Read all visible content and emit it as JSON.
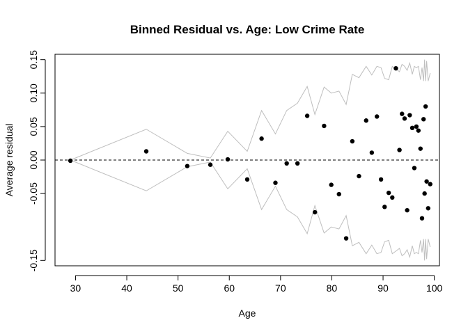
{
  "chart_data": {
    "type": "scatter",
    "title": "Binned Residual vs. Age: Low Crime Rate",
    "xlabel": "Age",
    "ylabel": "Average residual",
    "xlim": [
      26,
      101
    ],
    "ylim": [
      -0.158,
      0.158
    ],
    "x_ticks": [
      30,
      40,
      50,
      60,
      70,
      80,
      90,
      100
    ],
    "y_ticks": [
      -0.15,
      -0.05,
      0.0,
      0.05,
      0.1,
      0.15
    ],
    "y_tick_labels": [
      "-0.15",
      "-0.05",
      "0.00",
      "0.05",
      "0.10",
      "0.15"
    ],
    "x_tick_labels": [
      "30",
      "40",
      "50",
      "60",
      "70",
      "80",
      "90",
      "100"
    ],
    "grid": false,
    "reference_line": {
      "y": 0,
      "style": "dashed"
    },
    "colors": {
      "points": "#000000",
      "bands": "#bebebe",
      "reference": "#000000"
    },
    "points": [
      {
        "x": 29.0,
        "y": -0.001
      },
      {
        "x": 43.8,
        "y": 0.013
      },
      {
        "x": 51.8,
        "y": -0.009
      },
      {
        "x": 56.3,
        "y": -0.007
      },
      {
        "x": 59.7,
        "y": 0.001
      },
      {
        "x": 63.5,
        "y": -0.029
      },
      {
        "x": 66.3,
        "y": 0.032
      },
      {
        "x": 69.0,
        "y": -0.034
      },
      {
        "x": 71.2,
        "y": -0.005
      },
      {
        "x": 73.3,
        "y": -0.005
      },
      {
        "x": 75.2,
        "y": 0.066
      },
      {
        "x": 76.7,
        "y": -0.078
      },
      {
        "x": 78.5,
        "y": 0.051
      },
      {
        "x": 79.9,
        "y": -0.037
      },
      {
        "x": 81.4,
        "y": -0.051
      },
      {
        "x": 82.8,
        "y": -0.117
      },
      {
        "x": 84.0,
        "y": 0.028
      },
      {
        "x": 85.3,
        "y": -0.024
      },
      {
        "x": 86.7,
        "y": 0.059
      },
      {
        "x": 87.8,
        "y": 0.011
      },
      {
        "x": 88.8,
        "y": 0.065
      },
      {
        "x": 89.6,
        "y": -0.029
      },
      {
        "x": 90.3,
        "y": -0.07
      },
      {
        "x": 91.1,
        "y": -0.049
      },
      {
        "x": 91.8,
        "y": -0.056
      },
      {
        "x": 92.5,
        "y": 0.137
      },
      {
        "x": 93.2,
        "y": 0.015
      },
      {
        "x": 93.7,
        "y": 0.069
      },
      {
        "x": 94.2,
        "y": 0.062
      },
      {
        "x": 94.7,
        "y": -0.075
      },
      {
        "x": 95.2,
        "y": 0.067
      },
      {
        "x": 95.7,
        "y": 0.048
      },
      {
        "x": 96.1,
        "y": -0.012
      },
      {
        "x": 96.5,
        "y": 0.05
      },
      {
        "x": 96.9,
        "y": 0.044
      },
      {
        "x": 97.3,
        "y": 0.017
      },
      {
        "x": 97.6,
        "y": -0.087
      },
      {
        "x": 97.9,
        "y": 0.061
      },
      {
        "x": 98.1,
        "y": -0.05
      },
      {
        "x": 98.3,
        "y": 0.08
      },
      {
        "x": 98.5,
        "y": -0.032
      },
      {
        "x": 98.8,
        "y": -0.072
      },
      {
        "x": 99.2,
        "y": -0.036
      }
    ],
    "upper_band": [
      {
        "x": 29.0,
        "y": 0.0
      },
      {
        "x": 43.8,
        "y": 0.046
      },
      {
        "x": 51.8,
        "y": 0.01
      },
      {
        "x": 56.3,
        "y": 0.003
      },
      {
        "x": 59.7,
        "y": 0.043
      },
      {
        "x": 63.5,
        "y": 0.013
      },
      {
        "x": 66.3,
        "y": 0.074
      },
      {
        "x": 69.0,
        "y": 0.039
      },
      {
        "x": 71.2,
        "y": 0.074
      },
      {
        "x": 73.3,
        "y": 0.085
      },
      {
        "x": 75.2,
        "y": 0.11
      },
      {
        "x": 76.7,
        "y": 0.068
      },
      {
        "x": 78.5,
        "y": 0.109
      },
      {
        "x": 79.9,
        "y": 0.1
      },
      {
        "x": 81.4,
        "y": 0.103
      },
      {
        "x": 82.8,
        "y": 0.083
      },
      {
        "x": 84.0,
        "y": 0.128
      },
      {
        "x": 85.3,
        "y": 0.123
      },
      {
        "x": 86.7,
        "y": 0.14
      },
      {
        "x": 87.8,
        "y": 0.127
      },
      {
        "x": 88.8,
        "y": 0.14
      },
      {
        "x": 89.6,
        "y": 0.138
      },
      {
        "x": 90.3,
        "y": 0.122
      },
      {
        "x": 91.1,
        "y": 0.12
      },
      {
        "x": 91.8,
        "y": 0.14
      },
      {
        "x": 92.5,
        "y": 0.136
      },
      {
        "x": 93.2,
        "y": 0.132
      },
      {
        "x": 93.7,
        "y": 0.143
      },
      {
        "x": 94.2,
        "y": 0.14
      },
      {
        "x": 94.7,
        "y": 0.134
      },
      {
        "x": 95.2,
        "y": 0.145
      },
      {
        "x": 95.7,
        "y": 0.128
      },
      {
        "x": 96.1,
        "y": 0.14
      },
      {
        "x": 96.5,
        "y": 0.138
      },
      {
        "x": 96.9,
        "y": 0.14
      },
      {
        "x": 97.3,
        "y": 0.12
      },
      {
        "x": 97.6,
        "y": 0.138
      },
      {
        "x": 97.9,
        "y": 0.118
      },
      {
        "x": 98.1,
        "y": 0.15
      },
      {
        "x": 98.3,
        "y": 0.118
      },
      {
        "x": 98.5,
        "y": 0.148
      },
      {
        "x": 98.8,
        "y": 0.118
      },
      {
        "x": 99.2,
        "y": 0.13
      }
    ],
    "lower_band": [
      {
        "x": 29.0,
        "y": 0.0
      },
      {
        "x": 43.8,
        "y": -0.046
      },
      {
        "x": 51.8,
        "y": -0.01
      },
      {
        "x": 56.3,
        "y": -0.003
      },
      {
        "x": 59.7,
        "y": -0.043
      },
      {
        "x": 63.5,
        "y": -0.013
      },
      {
        "x": 66.3,
        "y": -0.074
      },
      {
        "x": 69.0,
        "y": -0.039
      },
      {
        "x": 71.2,
        "y": -0.074
      },
      {
        "x": 73.3,
        "y": -0.085
      },
      {
        "x": 75.2,
        "y": -0.11
      },
      {
        "x": 76.7,
        "y": -0.068
      },
      {
        "x": 78.5,
        "y": -0.109
      },
      {
        "x": 79.9,
        "y": -0.1
      },
      {
        "x": 81.4,
        "y": -0.103
      },
      {
        "x": 82.8,
        "y": -0.083
      },
      {
        "x": 84.0,
        "y": -0.128
      },
      {
        "x": 85.3,
        "y": -0.123
      },
      {
        "x": 86.7,
        "y": -0.14
      },
      {
        "x": 87.8,
        "y": -0.127
      },
      {
        "x": 88.8,
        "y": -0.14
      },
      {
        "x": 89.6,
        "y": -0.138
      },
      {
        "x": 90.3,
        "y": -0.122
      },
      {
        "x": 91.1,
        "y": -0.12
      },
      {
        "x": 91.8,
        "y": -0.14
      },
      {
        "x": 92.5,
        "y": -0.136
      },
      {
        "x": 93.2,
        "y": -0.132
      },
      {
        "x": 93.7,
        "y": -0.143
      },
      {
        "x": 94.2,
        "y": -0.14
      },
      {
        "x": 94.7,
        "y": -0.134
      },
      {
        "x": 95.2,
        "y": -0.145
      },
      {
        "x": 95.7,
        "y": -0.128
      },
      {
        "x": 96.1,
        "y": -0.14
      },
      {
        "x": 96.5,
        "y": -0.138
      },
      {
        "x": 96.9,
        "y": -0.14
      },
      {
        "x": 97.3,
        "y": -0.12
      },
      {
        "x": 97.6,
        "y": -0.138
      },
      {
        "x": 97.9,
        "y": -0.118
      },
      {
        "x": 98.1,
        "y": -0.15
      },
      {
        "x": 98.3,
        "y": -0.118
      },
      {
        "x": 98.5,
        "y": -0.148
      },
      {
        "x": 98.8,
        "y": -0.118
      },
      {
        "x": 99.2,
        "y": -0.13
      }
    ]
  }
}
